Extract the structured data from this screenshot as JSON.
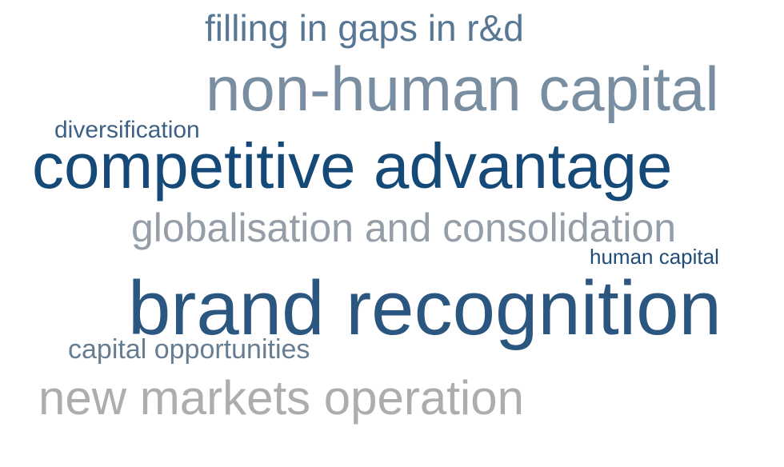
{
  "words": [
    {
      "text": "filling in gaps in r&d",
      "color": "#587795"
    },
    {
      "text": "non-human capital",
      "color": "#7a8ea1"
    },
    {
      "text": "diversification",
      "color": "#3d6184"
    },
    {
      "text": "competitive advantage",
      "color": "#154a78"
    },
    {
      "text": "globalisation and consolidation",
      "color": "#959ea8"
    },
    {
      "text": "human capital",
      "color": "#1f4d7a"
    },
    {
      "text": "brand recognition",
      "color": "#2b5680"
    },
    {
      "text": "capital opportunities",
      "color": "#677d92"
    },
    {
      "text": "new markets operation",
      "color": "#adadad"
    }
  ]
}
